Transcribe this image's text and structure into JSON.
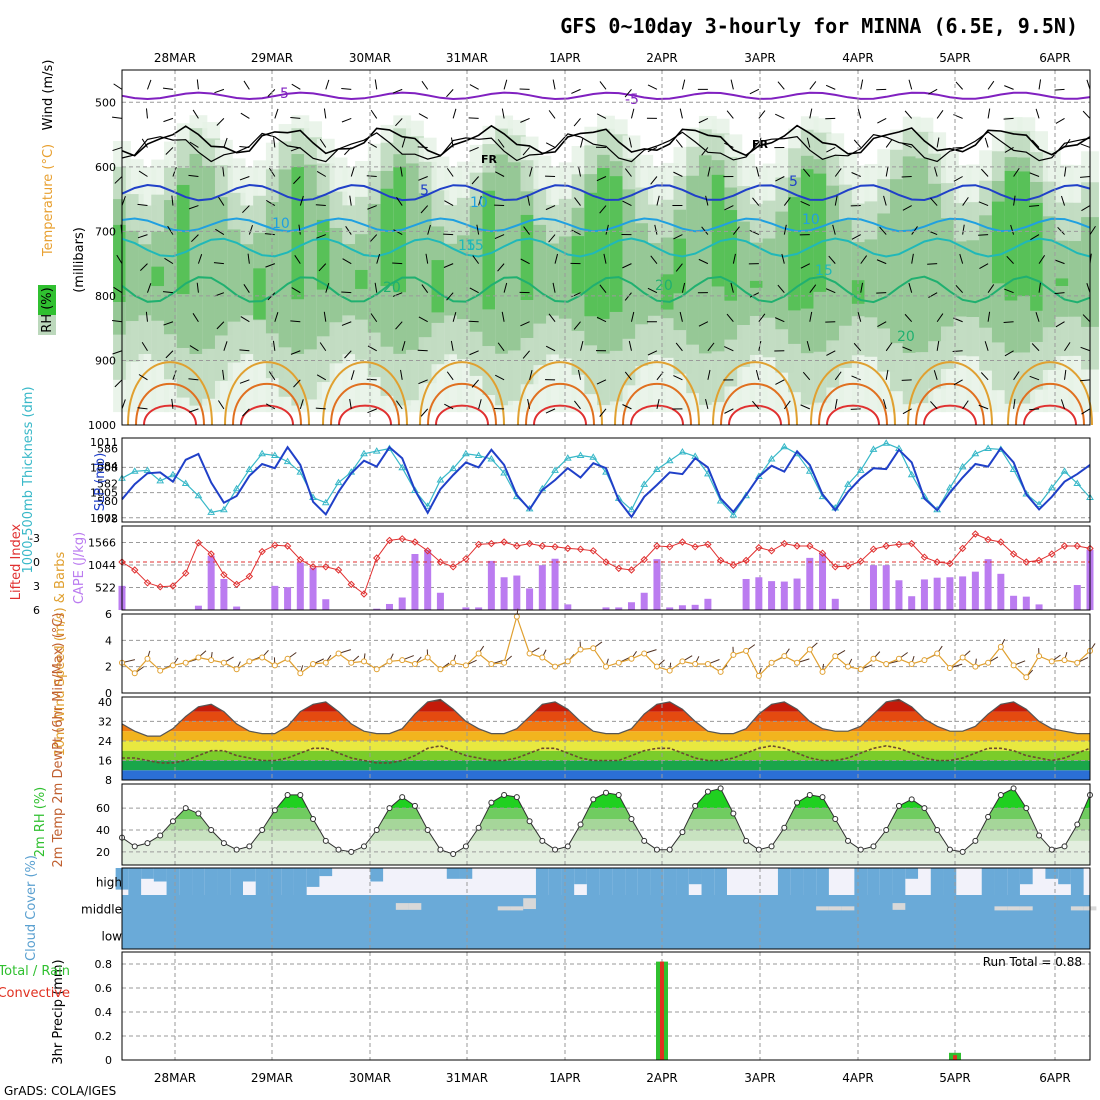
{
  "title": "GFS 0~10day 3-hourly for MINNA (6.5E, 9.5N)",
  "footer": "GrADS: COLA/IGES",
  "dates": [
    "28MAR",
    "29MAR",
    "30MAR",
    "31MAR",
    "1APR",
    "2APR",
    "3APR",
    "4APR",
    "5APR",
    "6APR"
  ],
  "colors": {
    "rh_fill": [
      "#e6f2e6",
      "#bcd8bc",
      "#8ec48e",
      "#4dbf4d",
      "#16d016"
    ],
    "temp_fill": [
      "#2b6fd6",
      "#1aa64a",
      "#7bcc2a",
      "#e8e840",
      "#f2b41e",
      "#f07a12",
      "#e44a10",
      "#c41a0a",
      "#8b1a0a"
    ],
    "cloud_bg": "#6aaad8",
    "cloud_gap": "#d8d8d8",
    "cloud_high_bg": "#f2f2fa",
    "precip_total": "#30c030",
    "precip_conv": "#e03020",
    "cape_bar": "#bb7cf0",
    "thickness_line": "#38b8c8",
    "slp_line": "#2040c8",
    "wind_line": "#e0a030"
  },
  "panels": {
    "upper": {
      "y_labels": [
        "Temperature (°C)",
        "Wind (m/s)",
        "(millibars)",
        "RH (%)"
      ],
      "y_ticks": [
        "500",
        "600",
        "700",
        "800",
        "900",
        "1000"
      ],
      "contour_labels": [
        "5",
        "-5",
        "5",
        "10",
        "15",
        "20",
        "20",
        "10",
        "15",
        "FR",
        "FR",
        "5",
        "10",
        "15",
        "20"
      ],
      "legend_rh": "RH (%)"
    },
    "thickness": {
      "ylabel_left": "1000-500mb Thickness (dm)",
      "ylabel_right": "SLP (mb)",
      "left_ticks": [
        "586",
        "584",
        "582",
        "580",
        "578"
      ],
      "right_ticks": [
        "1011",
        "1008",
        "1005",
        "1002"
      ]
    },
    "cape": {
      "ylabel_left": "Lifted Index",
      "ylabel_right": "CAPE (J/kg)",
      "li_ticks": [
        "-3",
        "0",
        "3",
        "6"
      ],
      "cape_ticks": [
        "1566",
        "1044",
        "522"
      ]
    },
    "wind": {
      "ylabel": "10m Wind Speed (m/s) & Barbs",
      "ticks": [
        "6",
        "4",
        "2",
        "0"
      ]
    },
    "temp": {
      "ylabel": "2m Temp 2m DewPt (6hr Min/Max) (°C)",
      "ticks": [
        "40",
        "32",
        "24",
        "16",
        "8"
      ]
    },
    "rh": {
      "ylabel": "2m RH (%)",
      "ticks": [
        "60",
        "40",
        "20"
      ]
    },
    "cloud": {
      "ylabel": "Cloud Cover (%)",
      "levels": [
        "high",
        "middle",
        "low"
      ]
    },
    "precip": {
      "ylabel": "3hr Precip (mm)",
      "legend_total": "Total / Rain",
      "legend_conv": "Convective",
      "ticks": [
        "0.8",
        "0.6",
        "0.4",
        "0.2",
        "0"
      ],
      "run_total": "Run Total = 0.88"
    }
  },
  "chart_data": {
    "type": "line",
    "title": "GFS 0~10day 3-hourly for MINNA (6.5E, 9.5N)",
    "x": {
      "unit": "3-hourly",
      "start": "27MAR 12Z",
      "count": 77,
      "labels": [
        "28MAR",
        "29MAR",
        "30MAR",
        "31MAR",
        "1APR",
        "2APR",
        "3APR",
        "4APR",
        "5APR",
        "6APR"
      ]
    },
    "slp_mb": {
      "ylim": [
        1001.5,
        1011.5
      ],
      "values": [
        1004.2,
        1006.0,
        1007.3,
        1007.4,
        1006.3,
        1008.9,
        1009.6,
        1006.2,
        1003.8,
        1004.6,
        1007.0,
        1008.4,
        1007.9,
        1010.4,
        1008.3,
        1003.9,
        1002.4,
        1005.1,
        1007.3,
        1008.8,
        1008.1,
        1010.4,
        1009.1,
        1005.3,
        1002.6,
        1005.4,
        1007.1,
        1008.6,
        1008.0,
        1010.1,
        1008.3,
        1004.7,
        1003.0,
        1005.3,
        1006.5,
        1007.9,
        1006.8,
        1008.5,
        1007.9,
        1004.1,
        1002.1,
        1004.5,
        1005.9,
        1007.4,
        1007.2,
        1009.1,
        1008.0,
        1004.3,
        1002.7,
        1004.7,
        1006.9,
        1008.2,
        1007.5,
        1009.9,
        1008.3,
        1004.8,
        1002.9,
        1005.1,
        1006.7,
        1007.9,
        1007.8,
        1010.1,
        1008.6,
        1004.3,
        1002.9,
        1005.0,
        1006.8,
        1008.4,
        1008.1,
        1010.3,
        1008.6,
        1004.8,
        1003.0,
        1004.5,
        1006.3,
        1007.2,
        1008.3
      ]
    },
    "thickness_dm": {
      "ylim": [
        577.6,
        587.2
      ],
      "values": [
        582.6,
        583.4,
        583.5,
        582.3,
        583.0,
        582.0,
        580.6,
        578.7,
        579.0,
        581.4,
        583.6,
        585.4,
        585.2,
        584.5,
        583.3,
        580.4,
        579.8,
        582.1,
        583.3,
        585.4,
        585.7,
        586.0,
        583.8,
        581.2,
        579.4,
        582.4,
        583.7,
        585.4,
        585.2,
        584.8,
        583.2,
        580.5,
        579.1,
        581.4,
        583.5,
        584.9,
        585.2,
        585.0,
        583.3,
        580.3,
        579.0,
        581.9,
        583.6,
        584.6,
        585.6,
        585.1,
        583.1,
        580.0,
        578.4,
        580.6,
        582.8,
        584.8,
        586.2,
        585.4,
        583.4,
        580.5,
        579.2,
        581.9,
        583.5,
        585.9,
        586.6,
        586.0,
        583.0,
        580.5,
        579.0,
        581.5,
        583.9,
        585.4,
        586.0,
        585.9,
        583.6,
        580.8,
        579.6,
        581.5,
        583.4,
        582.0,
        580.4
      ]
    },
    "lifted_index": {
      "ylim": [
        6,
        -4.5
      ],
      "values": [
        0.0,
        1.0,
        2.6,
        3.1,
        3.0,
        1.4,
        -2.4,
        -1.0,
        1.6,
        2.8,
        1.8,
        -1.3,
        -2.1,
        -2.0,
        -0.3,
        0.6,
        0.6,
        1.0,
        2.8,
        4.0,
        -0.5,
        -2.7,
        -2.9,
        -2.5,
        -1.4,
        0.0,
        0.6,
        -0.4,
        -2.2,
        -2.3,
        -2.5,
        -2.0,
        -2.3,
        -2.0,
        -1.9,
        -1.7,
        -1.6,
        -1.4,
        0.0,
        0.8,
        1.0,
        -0.3,
        -2.0,
        -1.9,
        -2.5,
        -1.9,
        -2.2,
        -0.2,
        0.4,
        -0.2,
        -1.8,
        -1.4,
        -2.3,
        -2.0,
        -2.0,
        -1.1,
        0.6,
        0.5,
        -0.1,
        -1.6,
        -2.0,
        -2.2,
        -2.3,
        -0.6,
        0.0,
        0.2,
        -1.7,
        -3.5,
        -2.8,
        -2.5,
        -1.0,
        0.0,
        -0.2,
        -1.0,
        -2.0,
        -2.0,
        -1.7
      ]
    },
    "cape_jkg": {
      "ylim": [
        0,
        1950
      ],
      "values": [
        560,
        0,
        0,
        0,
        0,
        0,
        100,
        1260,
        720,
        80,
        0,
        0,
        560,
        530,
        1100,
        980,
        250,
        0,
        0,
        0,
        30,
        140,
        290,
        1300,
        1400,
        400,
        0,
        60,
        60,
        1140,
        760,
        800,
        500,
        1040,
        1190,
        130,
        0,
        0,
        60,
        60,
        180,
        400,
        1180,
        60,
        110,
        120,
        260,
        0,
        0,
        720,
        760,
        670,
        660,
        730,
        1210,
        1310,
        260,
        0,
        0,
        1040,
        1040,
        690,
        320,
        710,
        750,
        760,
        780,
        890,
        1180,
        840,
        330,
        310,
        130,
        0,
        0,
        580,
        1400
      ]
    },
    "wind_speed_ms": {
      "ylim": [
        0,
        6
      ],
      "values": [
        2.3,
        1.5,
        2.6,
        1.7,
        2.1,
        2.3,
        2.7,
        2.5,
        2.3,
        1.8,
        2.4,
        2.7,
        2.1,
        2.6,
        1.5,
        2.2,
        2.3,
        3.0,
        2.3,
        2.4,
        1.8,
        2.4,
        2.5,
        2.2,
        2.7,
        1.8,
        2.3,
        2.1,
        3.0,
        2.2,
        2.3,
        5.8,
        3.0,
        2.7,
        2.0,
        2.4,
        3.3,
        3.4,
        2.0,
        2.3,
        2.6,
        3.0,
        2.0,
        1.7,
        2.4,
        2.2,
        2.2,
        1.6,
        2.9,
        3.2,
        1.3,
        2.3,
        2.8,
        2.3,
        3.3,
        1.6,
        2.8,
        2.0,
        1.8,
        2.6,
        2.2,
        2.6,
        2.2,
        2.5,
        3.0,
        1.9,
        2.7,
        2.0,
        2.3,
        3.5,
        2.1,
        1.2,
        2.8,
        2.4,
        2.5,
        2.3,
        3.2
      ]
    },
    "temp_2m_c": {
      "ylim": [
        8,
        42
      ],
      "values": [
        31,
        28,
        26,
        26,
        29,
        34,
        38,
        39,
        36,
        31,
        28,
        27,
        27,
        30,
        36,
        39,
        40,
        36,
        31,
        28,
        27,
        27,
        29,
        35,
        40,
        41,
        37,
        32,
        29,
        27,
        27,
        29,
        34,
        39,
        40,
        37,
        32,
        28,
        27,
        27,
        29,
        35,
        39,
        40,
        37,
        32,
        28,
        27,
        27,
        29,
        35,
        39,
        40,
        37,
        32,
        29,
        28,
        28,
        30,
        35,
        40,
        41,
        38,
        33,
        30,
        28,
        28,
        30,
        35,
        39,
        40,
        37,
        32,
        29,
        28,
        27,
        27
      ]
    },
    "dewpt_2m_c": {
      "ylim": [
        8,
        42
      ],
      "values": [
        17,
        17,
        16,
        15,
        15,
        16,
        18,
        20,
        20,
        18,
        17,
        16,
        16,
        17,
        19,
        21,
        21,
        19,
        17,
        16,
        15,
        15,
        16,
        18,
        21,
        22,
        20,
        18,
        17,
        16,
        16,
        17,
        19,
        21,
        21,
        19,
        17,
        16,
        16,
        16,
        18,
        20,
        21,
        21,
        19,
        17,
        16,
        16,
        17,
        19,
        21,
        22,
        21,
        19,
        17,
        16,
        16,
        17,
        19,
        21,
        22,
        21,
        19,
        17,
        16,
        16,
        17,
        19,
        21,
        21,
        20,
        18,
        17,
        16,
        17,
        19,
        21
      ]
    },
    "rh_2m_pct": {
      "ylim": [
        8,
        82
      ],
      "values": [
        33,
        25,
        28,
        35,
        48,
        60,
        55,
        40,
        28,
        22,
        25,
        40,
        58,
        72,
        72,
        50,
        30,
        22,
        20,
        25,
        40,
        60,
        70,
        62,
        40,
        22,
        18,
        25,
        42,
        65,
        72,
        70,
        48,
        30,
        22,
        25,
        45,
        68,
        74,
        72,
        50,
        30,
        22,
        22,
        38,
        62,
        75,
        78,
        55,
        30,
        22,
        25,
        42,
        65,
        72,
        70,
        50,
        30,
        22,
        25,
        40,
        62,
        68,
        60,
        40,
        22,
        20,
        30,
        52,
        72,
        78,
        60,
        35,
        22,
        25,
        45,
        72
      ]
    },
    "cloud_high_pct": {
      "values": [
        80,
        100,
        40,
        50,
        100,
        100,
        100,
        100,
        100,
        100,
        50,
        100,
        100,
        100,
        100,
        70,
        30,
        0,
        0,
        0,
        50,
        0,
        0,
        0,
        0,
        0,
        40,
        40,
        0,
        0,
        0,
        0,
        0,
        100,
        100,
        100,
        60,
        100,
        100,
        100,
        100,
        100,
        100,
        100,
        100,
        60,
        100,
        100,
        0,
        0,
        0,
        0,
        100,
        100,
        100,
        100,
        0,
        0,
        100,
        100,
        100,
        100,
        40,
        0,
        100,
        100,
        0,
        0,
        100,
        100,
        100,
        60,
        0,
        40,
        60,
        100,
        0
      ]
    },
    "cloud_mid_pct": {
      "values": [
        0,
        0,
        0,
        0,
        0,
        0,
        0,
        0,
        0,
        0,
        0,
        0,
        0,
        0,
        0,
        0,
        0,
        0,
        0,
        0,
        0,
        0,
        50,
        50,
        0,
        0,
        0,
        0,
        0,
        0,
        30,
        30,
        80,
        0,
        0,
        0,
        0,
        0,
        0,
        0,
        0,
        0,
        0,
        0,
        0,
        0,
        0,
        0,
        0,
        0,
        0,
        0,
        0,
        0,
        0,
        30,
        30,
        30,
        0,
        0,
        0,
        50,
        0,
        0,
        0,
        0,
        0,
        0,
        0,
        30,
        30,
        30,
        0,
        0,
        0,
        30,
        30
      ]
    },
    "cloud_low_pct": {
      "values": [
        0,
        0,
        0,
        0,
        0,
        0,
        0,
        0,
        0,
        0,
        0,
        0,
        0,
        0,
        0,
        0,
        0,
        0,
        0,
        0,
        0,
        0,
        0,
        0,
        0,
        0,
        0,
        0,
        0,
        0,
        0,
        0,
        0,
        0,
        0,
        0,
        0,
        0,
        0,
        0,
        0,
        0,
        0,
        0,
        0,
        0,
        0,
        0,
        0,
        0,
        0,
        0,
        0,
        0,
        0,
        0,
        0,
        0,
        0,
        0,
        0,
        0,
        0,
        0,
        0,
        0,
        0,
        0,
        0,
        0,
        0,
        0,
        0,
        0,
        0,
        0,
        0
      ]
    },
    "precip_3hr_mm": {
      "ylim": [
        0,
        0.9
      ],
      "total": [
        {
          "x_date": "2APR",
          "value": 0.82
        },
        {
          "x_date": "5APR",
          "value": 0.06
        }
      ],
      "convective": [
        {
          "x_date": "2APR",
          "value": 0.82
        },
        {
          "x_date": "5APR",
          "value": 0.04
        }
      ],
      "run_total": 0.88
    }
  }
}
